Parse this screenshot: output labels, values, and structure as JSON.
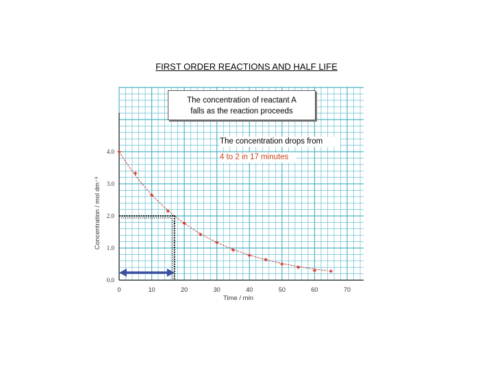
{
  "slide_title": "FIRST ORDER REACTIONS AND HALF LIFE",
  "callout": {
    "line1": "The concentration of reactant A",
    "line2": "falls as the reaction proceeds"
  },
  "note": {
    "line1": "The concentration drops from",
    "line2": "4 to 2 in 17 minutes"
  },
  "colors": {
    "grid": "#4fb3c8",
    "points": "#d23c2c",
    "curve": "#c03030",
    "arrow": "#3c4fa0",
    "note_highlight": "#c8441e"
  },
  "chart_data": {
    "type": "scatter",
    "xlabel": "Time / min",
    "ylabel": "Concentration / mol dm⁻³",
    "xlim": [
      0,
      70
    ],
    "ylim": [
      0,
      4
    ],
    "x_ticks": [
      "0",
      "10",
      "20",
      "30",
      "40",
      "50",
      "60",
      "70"
    ],
    "y_ticks": [
      "0.0",
      "1.0",
      "2.0",
      "3.0",
      "4.0"
    ],
    "grid": true,
    "points": {
      "x": [
        0,
        5,
        10,
        15,
        20,
        25,
        30,
        35,
        40,
        45,
        50,
        55,
        60,
        65
      ],
      "y": [
        4.0,
        3.33,
        2.65,
        2.15,
        1.77,
        1.42,
        1.17,
        0.94,
        0.77,
        0.64,
        0.5,
        0.4,
        0.3,
        0.28
      ]
    },
    "curve": {
      "initial": 4.0,
      "half_life": 17
    },
    "half_life_marker": {
      "time": 17,
      "concentration": 2.0
    }
  }
}
